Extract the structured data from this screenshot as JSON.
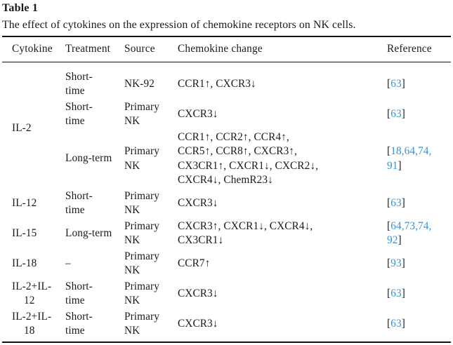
{
  "page": {
    "label": "Table 1",
    "caption": "The effect of cytokines on the expression of chemokine receptors on NK cells.",
    "colors": {
      "link": "#3694d0",
      "text": "#1a1a1a",
      "rule": "#111111"
    },
    "columns": [
      "Cytokine",
      "Treatment",
      "Source",
      "Chemokine change",
      "Reference"
    ],
    "groups": [
      {
        "cytokine": "IL-2",
        "entries": [
          {
            "treatment": "Short-\ntime",
            "source": "NK-92",
            "change": "CCR1↑, CXCR3↓",
            "reference": "[63]"
          },
          {
            "treatment": "Short-\ntime",
            "source": "Primary\nNK",
            "change": "CXCR3↓",
            "reference": "[63]"
          },
          {
            "treatment": "Long-term",
            "source": "Primary\nNK",
            "change": "CCR1↑, CCR2↑, CCR4↑,\nCCR5↑, CCR8↑, CXCR3↑,\nCX3CR1↑, CXCR1↓, CXCR2↓,\nCXCR4↓, ChemR23↓",
            "reference": "[18,64,74,\n91]"
          }
        ]
      },
      {
        "cytokine": "IL-12",
        "entries": [
          {
            "treatment": "Short-\ntime",
            "source": "Primary\nNK",
            "change": "CXCR3↓",
            "reference": "[63]"
          }
        ]
      },
      {
        "cytokine": "IL-15",
        "entries": [
          {
            "treatment": "Long-term",
            "source": "Primary\nNK",
            "change": "CXCR3↑, CXCR1↓, CXCR4↓,\nCX3CR1↓",
            "reference": "[64,73,74,\n92]"
          }
        ]
      },
      {
        "cytokine": "IL-18",
        "entries": [
          {
            "treatment": "–",
            "source": "Primary\nNK",
            "change": "CCR7↑",
            "reference": "[93]"
          }
        ]
      },
      {
        "cytokine": "IL-2+IL-\n12",
        "entries": [
          {
            "treatment": "Short-\ntime",
            "source": "Primary\nNK",
            "change": "CXCR3↓",
            "reference": "[63]"
          }
        ]
      },
      {
        "cytokine": "IL-2+IL-\n18",
        "entries": [
          {
            "treatment": "Short-\ntime",
            "source": "Primary\nNK",
            "change": "CXCR3↓",
            "reference": "[63]"
          }
        ]
      }
    ]
  }
}
